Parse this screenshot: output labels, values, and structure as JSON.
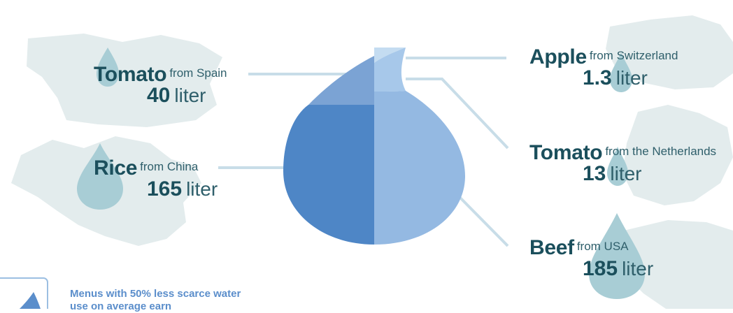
{
  "colors": {
    "map": "#e3eced",
    "teal_drop": "#a8cdd5",
    "connector": "#c8dde8",
    "text_dark": "#1b4f5c",
    "note_blue": "#5b8ecb"
  },
  "items": [
    {
      "name": "Tomato",
      "origin": "from Spain",
      "amount": "40",
      "unit": "liter",
      "value": 40
    },
    {
      "name": "Rice",
      "origin": "from China",
      "amount": "165",
      "unit": "liter",
      "value": 165
    },
    {
      "name": "Apple",
      "origin": "from Switzerland",
      "amount": "1.3",
      "unit": "liter",
      "value": 1.3
    },
    {
      "name": "Tomato",
      "origin": "from the Netherlands",
      "amount": "13",
      "unit": "liter",
      "value": 13
    },
    {
      "name": "Beef",
      "origin": "from USA",
      "amount": "185",
      "unit": "liter",
      "value": 185
    }
  ],
  "footer_note": "Menus with 50% less scarce water use on average earn"
}
